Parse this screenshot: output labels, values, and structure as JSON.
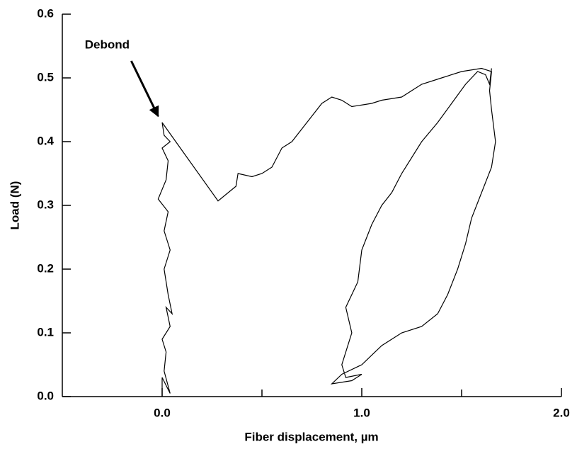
{
  "chart_data": {
    "type": "line",
    "xlabel": "Fiber displacement, µm",
    "ylabel": "Load (N)",
    "color": "#000000",
    "xlim": [
      -0.5,
      2.0
    ],
    "ylim": [
      0,
      0.6
    ],
    "xticks": [
      {
        "value": 0,
        "label": "0.0"
      },
      {
        "value": 1,
        "label": "1.0"
      },
      {
        "value": 2,
        "label": "2.0"
      }
    ],
    "xminor_ticks": [
      0.5,
      1.5
    ],
    "yticks": [
      {
        "value": 0,
        "label": "0.0"
      },
      0.1,
      0.2,
      0.3,
      0.4,
      0.5,
      0.6
    ],
    "annotation": {
      "text": "Debond",
      "x": -0.02,
      "y": 0.44
    },
    "x": [
      0,
      0,
      0.04,
      0.01,
      0.02,
      0.0,
      0.04,
      0.02,
      0.05,
      0.03,
      0.01,
      0.04,
      0.01,
      0.03,
      -0.02,
      0.02,
      0.03,
      0.0,
      0.04,
      0.01,
      0.0,
      0.28,
      0.37,
      0.38,
      0.45,
      0.5,
      0.55,
      0.6,
      0.65,
      0.7,
      0.75,
      0.8,
      0.85,
      0.9,
      0.95,
      1.05,
      1.1,
      1.2,
      1.3,
      1.4,
      1.5,
      1.6,
      1.65,
      1.64,
      1.65,
      1.67,
      1.65,
      1.6,
      1.55,
      1.52,
      1.48,
      1.43,
      1.38,
      1.3,
      1.2,
      1.1,
      1.0,
      0.9,
      0.85,
      0.95,
      1.0,
      0.92,
      0.9,
      0.95,
      0.92,
      0.98,
      1.0,
      1.05,
      1.1,
      1.15,
      1.2,
      1.3,
      1.38,
      1.45,
      1.52,
      1.58,
      1.62,
      1.64,
      1.65
    ],
    "values": [
      0,
      0.03,
      0.005,
      0.04,
      0.07,
      0.09,
      0.11,
      0.14,
      0.13,
      0.16,
      0.2,
      0.23,
      0.26,
      0.29,
      0.31,
      0.34,
      0.37,
      0.39,
      0.4,
      0.41,
      0.43,
      0.307,
      0.33,
      0.35,
      0.345,
      0.35,
      0.36,
      0.39,
      0.4,
      0.42,
      0.44,
      0.46,
      0.47,
      0.465,
      0.455,
      0.46,
      0.465,
      0.47,
      0.49,
      0.5,
      0.51,
      0.515,
      0.51,
      0.48,
      0.45,
      0.4,
      0.36,
      0.32,
      0.28,
      0.24,
      0.2,
      0.16,
      0.13,
      0.11,
      0.1,
      0.08,
      0.05,
      0.035,
      0.02,
      0.025,
      0.035,
      0.03,
      0.05,
      0.1,
      0.14,
      0.18,
      0.23,
      0.27,
      0.3,
      0.32,
      0.35,
      0.4,
      0.43,
      0.46,
      0.49,
      0.51,
      0.505,
      0.49,
      0.515
    ]
  }
}
